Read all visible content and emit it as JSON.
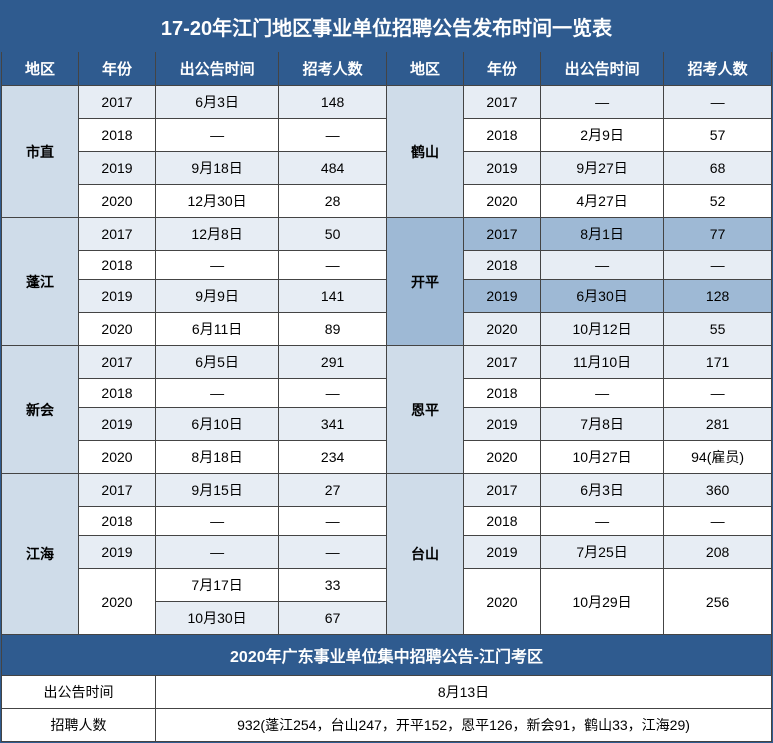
{
  "title": "17-20年江门地区事业单位招聘公告发布时间一览表",
  "headers": [
    "地区",
    "年份",
    "出公告时间",
    "招考人数",
    "地区",
    "年份",
    "出公告时间",
    "招考人数"
  ],
  "blocks": [
    {
      "left": {
        "region": "市直",
        "rows": [
          {
            "year": "2017",
            "time": "6月3日",
            "count": "148"
          },
          {
            "year": "2018",
            "time": "—",
            "count": "—"
          },
          {
            "year": "2019",
            "time": "9月18日",
            "count": "484"
          },
          {
            "year": "2020",
            "time": "12月30日",
            "count": "28"
          }
        ]
      },
      "right": {
        "region": "鹤山",
        "rows": [
          {
            "year": "2017",
            "time": "—",
            "count": "—"
          },
          {
            "year": "2018",
            "time": "2月9日",
            "count": "57"
          },
          {
            "year": "2019",
            "time": "9月27日",
            "count": "68"
          },
          {
            "year": "2020",
            "time": "4月27日",
            "count": "52"
          }
        ]
      }
    },
    {
      "left": {
        "region": "蓬江",
        "highlightRight": true,
        "rows": [
          {
            "year": "2017",
            "time": "12月8日",
            "count": "50"
          },
          {
            "year": "2018",
            "time": "—",
            "count": "—"
          },
          {
            "year": "2019",
            "time": "9月9日",
            "count": "141"
          },
          {
            "year": "2020",
            "time": "6月11日",
            "count": "89"
          }
        ]
      },
      "right": {
        "region": "开平",
        "rows": [
          {
            "year": "2017",
            "time": "8月1日",
            "count": "77"
          },
          {
            "year": "2018",
            "time": "—",
            "count": "—"
          },
          {
            "year": "2019",
            "time": "6月30日",
            "count": "128"
          },
          {
            "year": "2020",
            "time": "10月12日",
            "count": "55"
          }
        ]
      }
    },
    {
      "left": {
        "region": "新会",
        "rows": [
          {
            "year": "2017",
            "time": "6月5日",
            "count": "291"
          },
          {
            "year": "2018",
            "time": "—",
            "count": "—"
          },
          {
            "year": "2019",
            "time": "6月10日",
            "count": "341"
          },
          {
            "year": "2020",
            "time": "8月18日",
            "count": "234"
          }
        ]
      },
      "right": {
        "region": "恩平",
        "rows": [
          {
            "year": "2017",
            "time": "11月10日",
            "count": "171"
          },
          {
            "year": "2018",
            "time": "—",
            "count": "—"
          },
          {
            "year": "2019",
            "time": "7月8日",
            "count": "281"
          },
          {
            "year": "2020",
            "time": "10月27日",
            "count": "94(雇员)"
          }
        ]
      }
    }
  ],
  "jianghai": {
    "region": "江海",
    "rows": [
      {
        "year": "2017",
        "time": "9月15日",
        "count": "27"
      },
      {
        "year": "2018",
        "time": "—",
        "count": "—"
      },
      {
        "year": "2019",
        "time": "—",
        "count": "—"
      }
    ],
    "year2020": "2020",
    "extra": [
      {
        "time": "7月17日",
        "count": "33"
      },
      {
        "time": "10月30日",
        "count": "67"
      }
    ]
  },
  "taishan": {
    "region": "台山",
    "rows": [
      {
        "year": "2017",
        "time": "6月3日",
        "count": "360"
      },
      {
        "year": "2018",
        "time": "—",
        "count": "—"
      },
      {
        "year": "2019",
        "time": "7月25日",
        "count": "208"
      }
    ],
    "year2020": "2020",
    "time2020": "10月29日",
    "count2020": "256"
  },
  "subtitle": "2020年广东事业单位集中招聘公告-江门考区",
  "footer": {
    "timeLabel": "出公告时间",
    "timeValue": "8月13日",
    "countLabel": "招聘人数",
    "countValue": "932(蓬江254，台山247，开平152，恩平126，新会91，鹤山33，江海29)"
  },
  "colors": {
    "header_bg": "#2f5b8f",
    "region_bg": "#cfdce9",
    "region_highlight": "#9eb9d5",
    "row_light": "#e7edf4",
    "row_white": "#ffffff"
  }
}
